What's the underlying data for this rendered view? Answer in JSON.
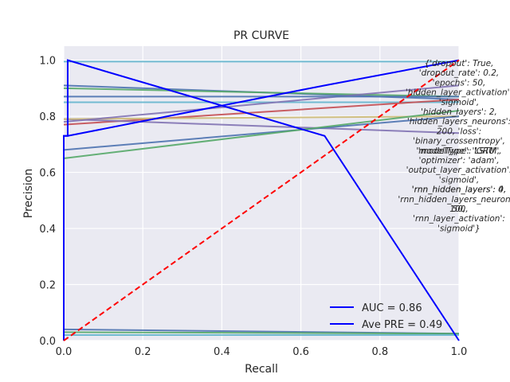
{
  "chart_data": {
    "type": "line",
    "title": "PR CURVE",
    "xlabel": "Recall",
    "ylabel": "Precision",
    "xlim": [
      0.0,
      1.0
    ],
    "ylim": [
      0.0,
      1.05
    ],
    "xticks": [
      "0.0",
      "0.2",
      "0.4",
      "0.6",
      "0.8",
      "1.0"
    ],
    "yticks": [
      "0.0",
      "0.2",
      "0.4",
      "0.6",
      "0.8",
      "1.0"
    ],
    "grid": true,
    "legend_position": "lower-right",
    "legend": [
      {
        "label": "AUC = 0.86",
        "color": "#0000ff"
      },
      {
        "label": "Ave PRE = 0.49",
        "color": "#0000ff"
      }
    ],
    "series": [
      {
        "color": "#0000ff",
        "x": [
          0.0,
          0.0,
          0.01,
          0.01,
          0.66,
          1.0
        ],
        "y": [
          0.0,
          0.73,
          0.73,
          1.0,
          0.73,
          0.0
        ]
      },
      {
        "color": "#0000ff",
        "x": [
          0.0,
          0.0,
          0.01,
          0.66,
          1.0
        ],
        "y": [
          0.0,
          0.73,
          0.73,
          0.91,
          1.0
        ]
      },
      {
        "color": "#ff0000",
        "dashed": true,
        "x": [
          0.0,
          1.0
        ],
        "y": [
          0.0,
          1.0
        ]
      }
    ],
    "background_lines": [
      {
        "color": "#4c72b0",
        "x": [
          0.0,
          1.0
        ],
        "y": [
          0.91,
          0.86
        ]
      },
      {
        "color": "#55a868",
        "x": [
          0.0,
          1.0
        ],
        "y": [
          0.9,
          0.87
        ]
      },
      {
        "color": "#64b5cd",
        "x": [
          0.0,
          1.0
        ],
        "y": [
          0.85,
          0.85
        ]
      },
      {
        "color": "#c44e52",
        "x": [
          0.0,
          1.0
        ],
        "y": [
          0.77,
          0.86
        ]
      },
      {
        "color": "#8172b2",
        "x": [
          0.0,
          1.0
        ],
        "y": [
          0.79,
          0.74
        ]
      },
      {
        "color": "#ccb974",
        "x": [
          0.0,
          1.0
        ],
        "y": [
          0.79,
          0.8
        ]
      },
      {
        "color": "#8172b2",
        "x": [
          0.0,
          1.0
        ],
        "y": [
          0.78,
          0.91
        ]
      },
      {
        "color": "#4c72b0",
        "x": [
          0.0,
          1.0
        ],
        "y": [
          0.68,
          0.8
        ]
      },
      {
        "color": "#55a868",
        "x": [
          0.0,
          1.0
        ],
        "y": [
          0.65,
          0.82
        ]
      },
      {
        "color": "#64b5cd",
        "x": [
          0.0,
          1.0
        ],
        "y": [
          0.995,
          0.995
        ]
      },
      {
        "color": "#4c72b0",
        "x": [
          0.0,
          1.0
        ],
        "y": [
          0.87,
          0.87
        ]
      },
      {
        "color": "#4c72b0",
        "x": [
          0.0,
          1.0
        ],
        "y": [
          0.04,
          0.025
        ]
      },
      {
        "color": "#55a868",
        "x": [
          0.0,
          1.0
        ],
        "y": [
          0.03,
          0.025
        ]
      },
      {
        "color": "#64b5cd",
        "x": [
          0.0,
          1.0
        ],
        "y": [
          0.02,
          0.02
        ]
      }
    ],
    "annotation_lines": [
      "{'dropout': True,",
      "'dropout_rate': 0.2,",
      "'epochs': 50,",
      "'hidden_layer_activation':",
      "'sigmoid',",
      "'hidden_layers': 2,",
      "'hidden_layers_neurons':",
      "200, 'loss':",
      "'binary_crossentropy',",
      "'modelType': 'LSTM',",
      "'optimizer': 'adam',",
      "'output_layer_activation':",
      "'sigmoid',",
      "'rnn_hidden_layers': 4,",
      "'rnn_hidden_layers_neurons':",
      "100,",
      "'rnn_layer_activation':",
      "'sigmoid'}"
    ],
    "annotation_overlap": [
      {
        "line": 9,
        "text": "'modelType': 'GRU',"
      },
      {
        "line": 13,
        "text": "'rnn_hidden_layers': 0,"
      },
      {
        "line": 15,
        "text": "50,"
      }
    ]
  }
}
